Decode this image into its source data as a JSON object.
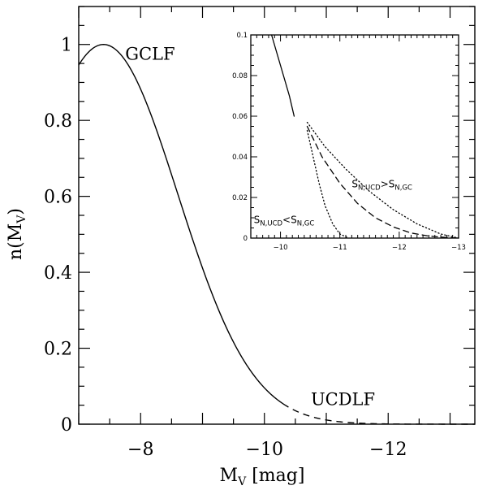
{
  "chart_data": {
    "type": "line",
    "main": {
      "title": "",
      "xlabel_main": "M",
      "xlabel_sub": "V",
      "xlabel_unit": " [mag]",
      "ylabel_prefix": "n(M",
      "ylabel_sub": "V",
      "ylabel_suffix": ")",
      "xlim": [
        -7,
        -13.4
      ],
      "ylim": [
        0,
        1.1
      ],
      "x_ticks": [
        {
          "value": -8,
          "label": "−8"
        },
        {
          "value": -10,
          "label": "−10"
        },
        {
          "value": -12,
          "label": "−12"
        }
      ],
      "y_ticks": [
        {
          "value": 0,
          "label": "0"
        },
        {
          "value": 0.2,
          "label": "0.2"
        },
        {
          "value": 0.4,
          "label": "0.4"
        },
        {
          "value": 0.6,
          "label": "0.6"
        },
        {
          "value": 0.8,
          "label": "0.8"
        },
        {
          "value": 1,
          "label": "1"
        }
      ],
      "series": [
        {
          "name": "GCLF",
          "style": "solid",
          "mean": -7.4,
          "sigma": 1.2,
          "x_from": -7,
          "x_to": -10.3
        },
        {
          "name": "UCDLF",
          "style": "dashed",
          "mean": -7.4,
          "sigma": 1.2,
          "x_from": -10.3,
          "x_to": -13.4
        }
      ],
      "annotations": [
        {
          "text": "GCLF",
          "x": -7.75,
          "y": 0.96
        },
        {
          "text": "UCDLF",
          "x": -10.75,
          "y": 0.05
        }
      ]
    },
    "inset": {
      "xlim": [
        -9.5,
        -13
      ],
      "ylim": [
        0,
        0.1
      ],
      "x_ticks": [
        {
          "value": -10,
          "label": "−10"
        },
        {
          "value": -11,
          "label": "−11"
        },
        {
          "value": -12,
          "label": "−12"
        },
        {
          "value": -13,
          "label": "−13"
        }
      ],
      "y_ticks": [
        {
          "value": 0,
          "label": "0"
        },
        {
          "value": 0.02,
          "label": "0.02"
        },
        {
          "value": 0.04,
          "label": "0.04"
        },
        {
          "value": 0.06,
          "label": "0.06"
        },
        {
          "value": 0.08,
          "label": "0.08"
        },
        {
          "value": 0.1,
          "label": "0.1"
        }
      ],
      "series": [
        {
          "name": "GCLF",
          "style": "solid",
          "points": [
            [
              -9.85,
              0.1
            ],
            [
              -9.95,
              0.09
            ],
            [
              -10.05,
              0.08
            ],
            [
              -10.15,
              0.07
            ],
            [
              -10.23,
              0.06
            ]
          ]
        },
        {
          "name": "UCDLF",
          "style": "dashed",
          "points": [
            [
              -10.45,
              0.055
            ],
            [
              -10.7,
              0.04
            ],
            [
              -11.0,
              0.027
            ],
            [
              -11.3,
              0.017
            ],
            [
              -11.6,
              0.01
            ],
            [
              -11.9,
              0.0055
            ],
            [
              -12.2,
              0.0025
            ],
            [
              -12.5,
              0.001
            ],
            [
              -12.8,
              0.0003
            ],
            [
              -13.0,
              0.0
            ]
          ]
        },
        {
          "name": "S_N,UCD > S_N,GC",
          "style": "dotted",
          "points": [
            [
              -10.45,
              0.057
            ],
            [
              -10.75,
              0.045
            ],
            [
              -11.1,
              0.034
            ],
            [
              -11.5,
              0.023
            ],
            [
              -11.9,
              0.014
            ],
            [
              -12.3,
              0.007
            ],
            [
              -12.7,
              0.002
            ],
            [
              -13.0,
              0.0
            ]
          ]
        },
        {
          "name": "S_N,UCD < S_N,GC",
          "style": "dotted",
          "points": [
            [
              -10.45,
              0.053
            ],
            [
              -10.55,
              0.04
            ],
            [
              -10.65,
              0.027
            ],
            [
              -10.75,
              0.016
            ],
            [
              -10.88,
              0.007
            ],
            [
              -11.0,
              0.002
            ],
            [
              -11.15,
              0.0
            ]
          ]
        }
      ],
      "annotations": [
        {
          "main": "S",
          "sub": "N,UCD",
          "op": ">",
          "main2": "S",
          "sub2": "N,GC",
          "x": -11.2,
          "y": 0.025
        },
        {
          "main": "S",
          "sub": "N,UCD",
          "op": "<",
          "main2": "S",
          "sub2": "N,GC",
          "x": -9.55,
          "y": 0.0075
        }
      ]
    }
  }
}
